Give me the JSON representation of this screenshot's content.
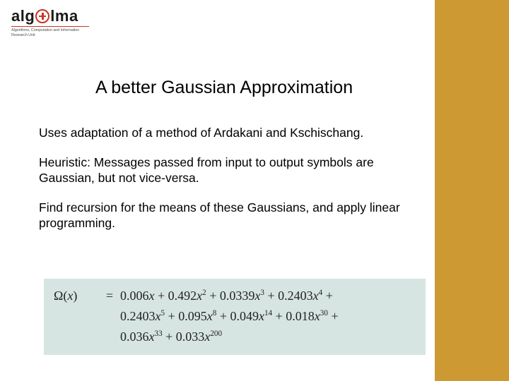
{
  "logo": {
    "pre": "alg",
    "post": "lma",
    "subtitle": "Algorithms, Computation and Information Research Unit"
  },
  "title": "A better Gaussian Approximation",
  "body": {
    "p1": "Uses adaptation of a method of Ardakani and Kschischang.",
    "p2": "Heuristic: Messages passed from input to output symbols are Gaussian, but not vice-versa.",
    "p3": "Find recursion for the means of these Gaussians, and apply linear programming."
  },
  "formula": {
    "background_color": "#d6e5e2",
    "text_color": "#222222",
    "font_family": "Georgia, Times New Roman, serif",
    "fontsize_pt": 18,
    "lhs_symbol": "Ω",
    "lhs_var": "x",
    "terms": [
      {
        "coef": "0.006",
        "var": "x",
        "exp": null
      },
      {
        "coef": "0.492",
        "var": "x",
        "exp": "2"
      },
      {
        "coef": "0.0339",
        "var": "x",
        "exp": "3"
      },
      {
        "coef": "0.2403",
        "var": "x",
        "exp": "4"
      },
      {
        "coef": "0.2403",
        "var": "x",
        "exp": "5"
      },
      {
        "coef": "0.095",
        "var": "x",
        "exp": "8"
      },
      {
        "coef": "0.049",
        "var": "x",
        "exp": "14"
      },
      {
        "coef": "0.018",
        "var": "x",
        "exp": "30"
      },
      {
        "coef": "0.036",
        "var": "x",
        "exp": "33"
      },
      {
        "coef": "0.033",
        "var": "x",
        "exp": "200"
      }
    ],
    "line_breaks_after_terms": [
      4,
      8
    ]
  },
  "sideband_color": "#cc9933",
  "background_color": "#ffffff"
}
